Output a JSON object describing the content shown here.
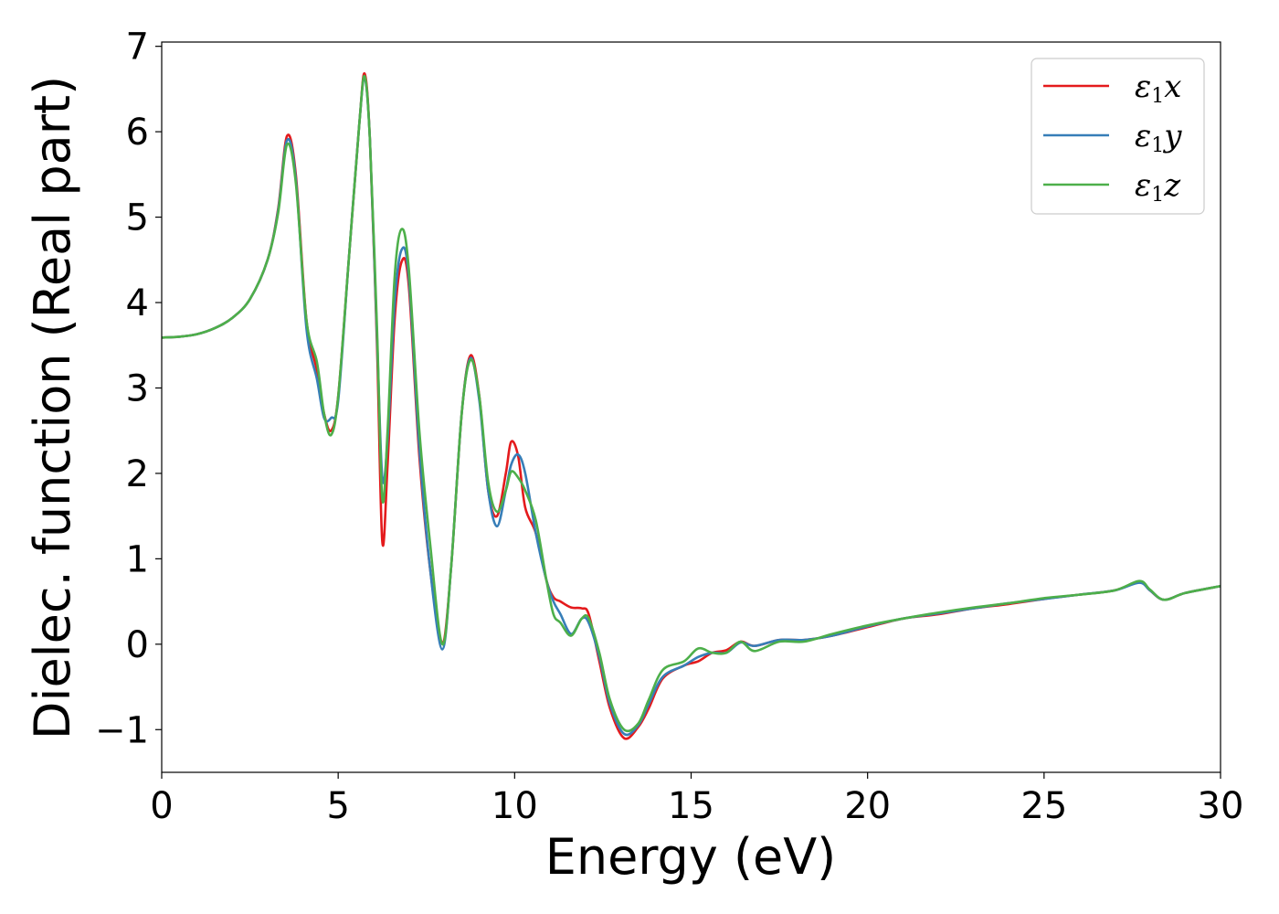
{
  "chart_data": {
    "type": "line",
    "xlabel": "Energy (eV)",
    "ylabel": "Dielec. function (Real part)",
    "xlim": [
      0,
      30
    ],
    "ylim": [
      -1.5,
      7.05
    ],
    "xticks": [
      0,
      5,
      10,
      15,
      20,
      25,
      30
    ],
    "yticks": [
      -1,
      0,
      1,
      2,
      3,
      4,
      5,
      6,
      7
    ],
    "ytick_labels": [
      "−1",
      "0",
      "1",
      "2",
      "3",
      "4",
      "5",
      "6",
      "7"
    ],
    "grid": false,
    "legend_position": "top-right",
    "series": [
      {
        "name": "x",
        "legend_prefix": "ε",
        "legend_sub": "1",
        "color": "#e41a1c",
        "points": [
          [
            0,
            3.59
          ],
          [
            0.5,
            3.6
          ],
          [
            1,
            3.63
          ],
          [
            1.5,
            3.7
          ],
          [
            2,
            3.82
          ],
          [
            2.5,
            4.04
          ],
          [
            3,
            4.5
          ],
          [
            3.3,
            5.1
          ],
          [
            3.55,
            5.95
          ],
          [
            3.8,
            5.5
          ],
          [
            4.1,
            3.8
          ],
          [
            4.4,
            3.2
          ],
          [
            4.6,
            2.7
          ],
          [
            4.8,
            2.5
          ],
          [
            5.0,
            2.9
          ],
          [
            5.3,
            4.5
          ],
          [
            5.6,
            6.1
          ],
          [
            5.75,
            6.68
          ],
          [
            5.9,
            5.9
          ],
          [
            6.1,
            3.5
          ],
          [
            6.25,
            1.2
          ],
          [
            6.4,
            2.1
          ],
          [
            6.6,
            3.8
          ],
          [
            6.8,
            4.48
          ],
          [
            7.0,
            4.2
          ],
          [
            7.3,
            2.2
          ],
          [
            7.6,
            0.9
          ],
          [
            7.95,
            0.02
          ],
          [
            8.2,
            0.9
          ],
          [
            8.5,
            2.7
          ],
          [
            8.75,
            3.38
          ],
          [
            9.0,
            2.9
          ],
          [
            9.25,
            1.8
          ],
          [
            9.5,
            1.5
          ],
          [
            9.75,
            2.0
          ],
          [
            9.9,
            2.37
          ],
          [
            10.1,
            2.2
          ],
          [
            10.3,
            1.6
          ],
          [
            10.6,
            1.3
          ],
          [
            10.9,
            0.75
          ],
          [
            11.1,
            0.55
          ],
          [
            11.3,
            0.5
          ],
          [
            11.6,
            0.43
          ],
          [
            11.9,
            0.42
          ],
          [
            12.1,
            0.35
          ],
          [
            12.4,
            -0.2
          ],
          [
            12.7,
            -0.75
          ],
          [
            13.1,
            -1.1
          ],
          [
            13.5,
            -0.97
          ],
          [
            13.8,
            -0.75
          ],
          [
            14.2,
            -0.4
          ],
          [
            14.8,
            -0.25
          ],
          [
            15.2,
            -0.2
          ],
          [
            15.6,
            -0.1
          ],
          [
            16.0,
            -0.07
          ],
          [
            16.4,
            0.03
          ],
          [
            16.8,
            -0.02
          ],
          [
            17.5,
            0.05
          ],
          [
            18.2,
            0.05
          ],
          [
            19.0,
            0.1
          ],
          [
            20.0,
            0.2
          ],
          [
            21.0,
            0.3
          ],
          [
            22.0,
            0.35
          ],
          [
            23.0,
            0.42
          ],
          [
            24.0,
            0.47
          ],
          [
            25.0,
            0.53
          ],
          [
            26.0,
            0.58
          ],
          [
            27.0,
            0.63
          ],
          [
            27.7,
            0.73
          ],
          [
            28.0,
            0.63
          ],
          [
            28.4,
            0.52
          ],
          [
            29.0,
            0.6
          ],
          [
            30.0,
            0.68
          ]
        ]
      },
      {
        "name": "y",
        "legend_prefix": "ε",
        "legend_sub": "1",
        "color": "#377eb8",
        "points": [
          [
            0,
            3.59
          ],
          [
            0.5,
            3.6
          ],
          [
            1,
            3.63
          ],
          [
            1.5,
            3.7
          ],
          [
            2,
            3.82
          ],
          [
            2.5,
            4.04
          ],
          [
            3,
            4.5
          ],
          [
            3.3,
            5.08
          ],
          [
            3.55,
            5.9
          ],
          [
            3.8,
            5.45
          ],
          [
            4.1,
            3.7
          ],
          [
            4.4,
            3.1
          ],
          [
            4.6,
            2.65
          ],
          [
            4.8,
            2.65
          ],
          [
            5.0,
            2.85
          ],
          [
            5.3,
            4.5
          ],
          [
            5.6,
            6.1
          ],
          [
            5.75,
            6.63
          ],
          [
            5.9,
            5.9
          ],
          [
            6.1,
            3.6
          ],
          [
            6.25,
            1.95
          ],
          [
            6.4,
            2.4
          ],
          [
            6.6,
            4.0
          ],
          [
            6.8,
            4.62
          ],
          [
            7.0,
            4.3
          ],
          [
            7.3,
            2.3
          ],
          [
            7.6,
            0.9
          ],
          [
            7.95,
            -0.06
          ],
          [
            8.2,
            0.9
          ],
          [
            8.5,
            2.7
          ],
          [
            8.75,
            3.35
          ],
          [
            9.0,
            2.85
          ],
          [
            9.25,
            1.8
          ],
          [
            9.5,
            1.38
          ],
          [
            9.75,
            1.8
          ],
          [
            9.9,
            2.1
          ],
          [
            10.1,
            2.22
          ],
          [
            10.3,
            2.0
          ],
          [
            10.6,
            1.3
          ],
          [
            10.9,
            0.75
          ],
          [
            11.1,
            0.5
          ],
          [
            11.3,
            0.35
          ],
          [
            11.6,
            0.12
          ],
          [
            11.9,
            0.3
          ],
          [
            12.1,
            0.25
          ],
          [
            12.4,
            -0.15
          ],
          [
            12.7,
            -0.7
          ],
          [
            13.1,
            -1.05
          ],
          [
            13.5,
            -0.95
          ],
          [
            13.8,
            -0.7
          ],
          [
            14.2,
            -0.38
          ],
          [
            14.8,
            -0.25
          ],
          [
            15.2,
            -0.15
          ],
          [
            15.6,
            -0.1
          ],
          [
            16.0,
            -0.1
          ],
          [
            16.4,
            0.02
          ],
          [
            16.8,
            -0.02
          ],
          [
            17.5,
            0.05
          ],
          [
            18.2,
            0.05
          ],
          [
            19.0,
            0.1
          ],
          [
            20.0,
            0.21
          ],
          [
            21.0,
            0.3
          ],
          [
            22.0,
            0.36
          ],
          [
            23.0,
            0.42
          ],
          [
            24.0,
            0.48
          ],
          [
            25.0,
            0.53
          ],
          [
            26.0,
            0.58
          ],
          [
            27.0,
            0.63
          ],
          [
            27.7,
            0.72
          ],
          [
            28.0,
            0.63
          ],
          [
            28.4,
            0.52
          ],
          [
            29.0,
            0.6
          ],
          [
            30.0,
            0.68
          ]
        ]
      },
      {
        "name": "z",
        "legend_prefix": "ε",
        "legend_sub": "1",
        "color": "#4daf4a",
        "points": [
          [
            0,
            3.59
          ],
          [
            0.5,
            3.6
          ],
          [
            1,
            3.63
          ],
          [
            1.5,
            3.7
          ],
          [
            2,
            3.82
          ],
          [
            2.5,
            4.04
          ],
          [
            3,
            4.5
          ],
          [
            3.3,
            5.05
          ],
          [
            3.55,
            5.85
          ],
          [
            3.8,
            5.4
          ],
          [
            4.1,
            3.8
          ],
          [
            4.4,
            3.3
          ],
          [
            4.6,
            2.7
          ],
          [
            4.8,
            2.45
          ],
          [
            5.0,
            2.9
          ],
          [
            5.3,
            4.5
          ],
          [
            5.6,
            6.1
          ],
          [
            5.75,
            6.65
          ],
          [
            5.9,
            5.9
          ],
          [
            6.1,
            3.7
          ],
          [
            6.25,
            1.7
          ],
          [
            6.4,
            2.5
          ],
          [
            6.6,
            4.3
          ],
          [
            6.8,
            4.86
          ],
          [
            7.0,
            4.4
          ],
          [
            7.3,
            2.5
          ],
          [
            7.6,
            1.2
          ],
          [
            7.95,
            0.0
          ],
          [
            8.2,
            0.9
          ],
          [
            8.5,
            2.7
          ],
          [
            8.75,
            3.33
          ],
          [
            9.0,
            2.9
          ],
          [
            9.25,
            1.9
          ],
          [
            9.5,
            1.55
          ],
          [
            9.75,
            1.8
          ],
          [
            9.9,
            2.02
          ],
          [
            10.1,
            1.95
          ],
          [
            10.3,
            1.8
          ],
          [
            10.6,
            1.45
          ],
          [
            10.9,
            0.75
          ],
          [
            11.1,
            0.35
          ],
          [
            11.3,
            0.25
          ],
          [
            11.6,
            0.1
          ],
          [
            11.9,
            0.3
          ],
          [
            12.1,
            0.3
          ],
          [
            12.4,
            -0.1
          ],
          [
            12.7,
            -0.65
          ],
          [
            13.1,
            -1.0
          ],
          [
            13.5,
            -0.93
          ],
          [
            13.8,
            -0.65
          ],
          [
            14.2,
            -0.3
          ],
          [
            14.8,
            -0.2
          ],
          [
            15.2,
            -0.05
          ],
          [
            15.6,
            -0.1
          ],
          [
            16.0,
            -0.1
          ],
          [
            16.4,
            0.03
          ],
          [
            16.8,
            -0.08
          ],
          [
            17.5,
            0.03
          ],
          [
            18.2,
            0.03
          ],
          [
            19.0,
            0.12
          ],
          [
            20.0,
            0.22
          ],
          [
            21.0,
            0.3
          ],
          [
            22.0,
            0.37
          ],
          [
            23.0,
            0.43
          ],
          [
            24.0,
            0.48
          ],
          [
            25.0,
            0.54
          ],
          [
            26.0,
            0.58
          ],
          [
            27.0,
            0.63
          ],
          [
            27.7,
            0.74
          ],
          [
            28.0,
            0.64
          ],
          [
            28.4,
            0.52
          ],
          [
            29.0,
            0.6
          ],
          [
            30.0,
            0.68
          ]
        ]
      }
    ]
  }
}
